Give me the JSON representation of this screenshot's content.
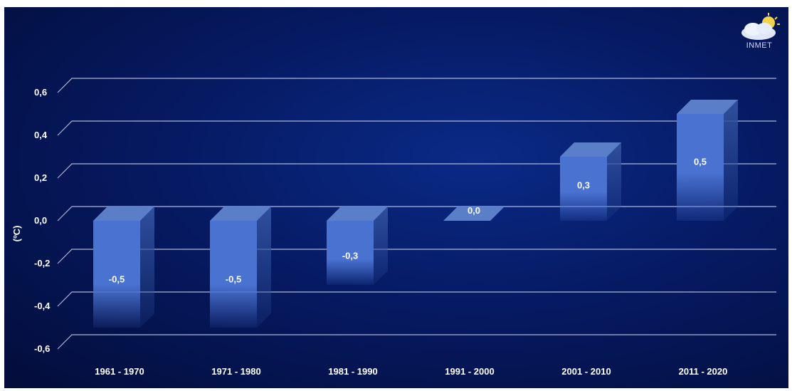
{
  "chart_data": {
    "type": "bar",
    "categories": [
      "1961 - 1970",
      "1971 - 1980",
      "1981 - 1990",
      "1991 - 2000",
      "2001 - 2010",
      "2011 - 2020"
    ],
    "values": [
      -0.5,
      -0.5,
      -0.3,
      0.0,
      0.3,
      0.5
    ],
    "data_labels": [
      "-0,5",
      "-0,5",
      "-0,3",
      "0,0",
      "0,3",
      "0,5"
    ],
    "ylabel": "(ºC)",
    "ylim": [
      -0.6,
      0.6
    ],
    "yticks": [
      0.6,
      0.4,
      0.2,
      0.0,
      -0.2,
      -0.4,
      -0.6
    ],
    "ytick_labels": [
      "0,6",
      "0,4",
      "0,2",
      "0,0",
      "-0,2",
      "-0,4",
      "-0,6"
    ],
    "grid": true,
    "style": "3d",
    "colors": {
      "bar": "#4a72d1",
      "bar_top": "#5a7ec8",
      "bar_side": "#2f4f9c",
      "grid": "#c8d2f0",
      "background": "#061a63"
    }
  },
  "logo": {
    "text": "INMET"
  }
}
